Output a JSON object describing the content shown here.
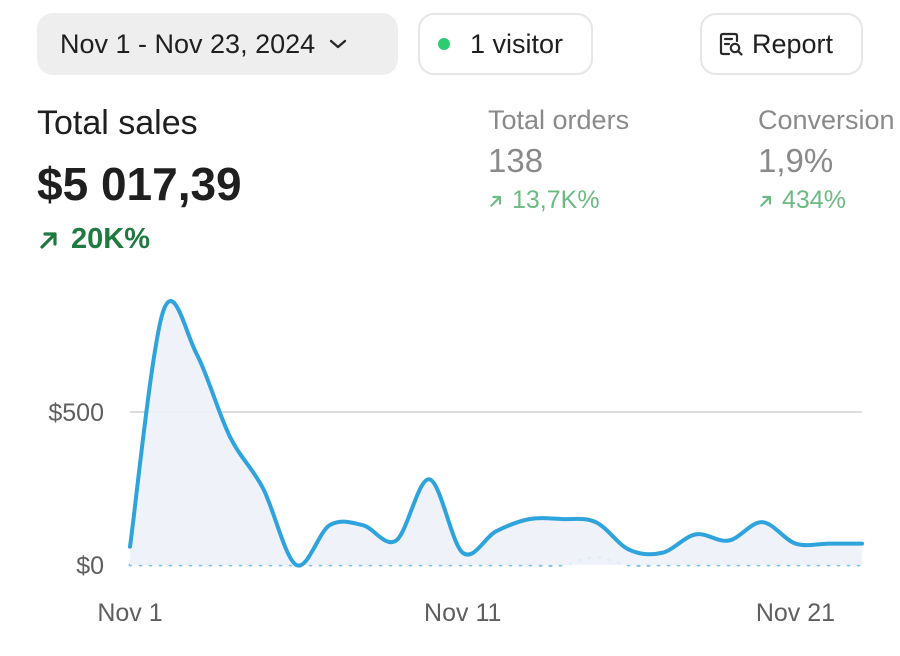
{
  "toolbar": {
    "date_range": "Nov 1 - Nov 23, 2024",
    "visitors": "1 visitor",
    "visitor_dot_color": "#2ecc71",
    "report_label": "Report",
    "icons": [
      "chevron-down-icon",
      "status-dot-icon",
      "report-search-icon"
    ]
  },
  "metrics": {
    "total_sales": {
      "title": "Total sales",
      "value": "$5 017,39",
      "delta": "20K%",
      "color": "#1f7a3f"
    },
    "total_orders": {
      "title": "Total orders",
      "value": "138",
      "delta": "13,7K%",
      "color": "#6cbb82"
    },
    "conversion": {
      "title": "Conversion",
      "value": "1,9%",
      "delta": "434%",
      "color": "#6cbb82"
    }
  },
  "chart_data": {
    "type": "line",
    "xlabel": "",
    "ylabel": "",
    "x_tick_labels": [
      "Nov 1",
      "Nov 11",
      "Nov 21"
    ],
    "y_tick_labels": [
      "$500",
      "$0"
    ],
    "ylim": [
      0,
      1000
    ],
    "grid": "horizontal",
    "legend": "none",
    "series": [
      {
        "style": "solid",
        "color": "#2ea3dc",
        "x": [
          "Nov 1",
          "Nov 2",
          "Nov 3",
          "Nov 4",
          "Nov 5",
          "Nov 6",
          "Nov 7",
          "Nov 8",
          "Nov 9",
          "Nov 10",
          "Nov 11",
          "Nov 12",
          "Nov 13",
          "Nov 14",
          "Nov 15",
          "Nov 16",
          "Nov 17",
          "Nov 18",
          "Nov 19",
          "Nov 20",
          "Nov 21",
          "Nov 22",
          "Nov 23"
        ],
        "values": [
          60,
          830,
          690,
          420,
          250,
          0,
          130,
          130,
          80,
          280,
          40,
          110,
          150,
          150,
          140,
          50,
          40,
          100,
          80,
          140,
          70,
          70,
          70
        ]
      },
      {
        "style": "dotted",
        "color": "#7cc6ec",
        "x": [
          "Nov 1",
          "Nov 2",
          "Nov 3",
          "Nov 4",
          "Nov 5",
          "Nov 6",
          "Nov 7",
          "Nov 8",
          "Nov 9",
          "Nov 10",
          "Nov 11",
          "Nov 12",
          "Nov 13",
          "Nov 14",
          "Nov 15",
          "Nov 16",
          "Nov 17",
          "Nov 18",
          "Nov 19",
          "Nov 20",
          "Nov 21",
          "Nov 22",
          "Nov 23"
        ],
        "values": [
          0,
          0,
          0,
          0,
          0,
          0,
          0,
          0,
          0,
          0,
          0,
          0,
          0,
          0,
          25,
          0,
          0,
          0,
          0,
          0,
          0,
          0,
          0
        ]
      }
    ]
  }
}
